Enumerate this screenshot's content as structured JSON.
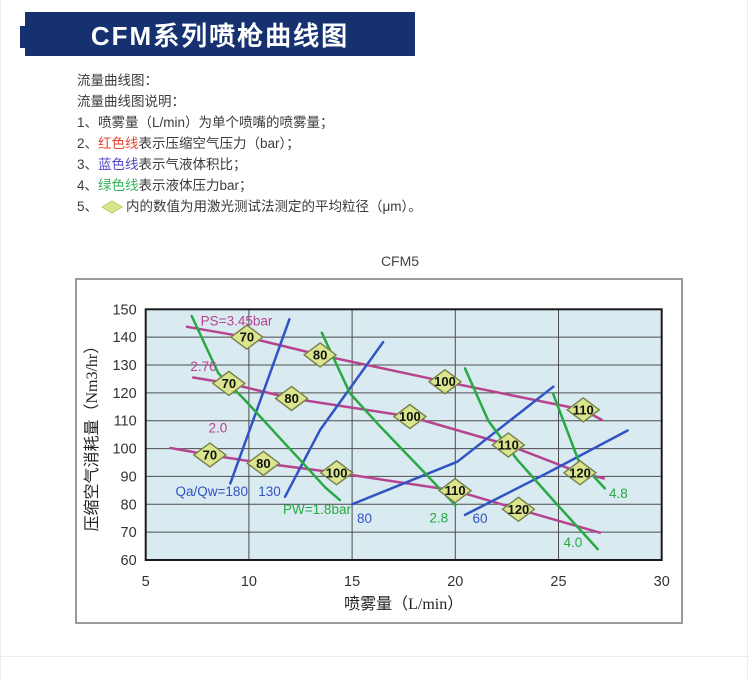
{
  "header": {
    "title": "CFM系列喷枪曲线图"
  },
  "legend": {
    "lines": [
      [
        {
          "text": "流量曲线图："
        }
      ],
      [
        {
          "text": "流量曲线图说明："
        }
      ],
      [
        {
          "text": "1、喷雾量（L/min）为单个喷嘴的喷雾量；"
        }
      ],
      [
        {
          "text": "2、"
        },
        {
          "text": "红色线",
          "color": "#e8462f"
        },
        {
          "text": "表示压缩空气压力（bar）；"
        }
      ],
      [
        {
          "text": "3、"
        },
        {
          "text": "蓝色线",
          "color": "#4f49c5"
        },
        {
          "text": "表示气液体积比；"
        }
      ],
      [
        {
          "text": "4、"
        },
        {
          "text": "绿色线",
          "color": "#36b45c"
        },
        {
          "text": "表示液体压力bar；"
        }
      ],
      [
        {
          "text": "5、"
        },
        {
          "icon": "diamond"
        },
        {
          "text": "内的数值为用激光测试法测定的平均粒径（μm）。"
        }
      ]
    ],
    "diamond_fill": "#dbe48d",
    "diamond_stroke": "#b8cc66"
  },
  "chart_data": {
    "type": "line",
    "title": "CFM5",
    "xlabel": "喷雾量（L/min）",
    "ylabel": "压缩空气消耗量（Nm3/hr）",
    "xlim": [
      5,
      30
    ],
    "ylim": [
      60,
      150
    ],
    "xticks": [
      5,
      10,
      15,
      20,
      25,
      30
    ],
    "yticks": [
      60,
      70,
      80,
      90,
      100,
      110,
      120,
      130,
      140,
      150
    ],
    "grid": "on",
    "plot_bg": "#d9eaf1",
    "grid_color": "#4d4d4d",
    "border_color": "#1a1a1a",
    "marker_fill": "#dbe58e",
    "marker_stroke": "#75804a",
    "series": [
      {
        "name": "PS=3.45bar",
        "kind": "air-pressure",
        "color": "#b6448f",
        "label": {
          "text": "PS=3.45bar",
          "x": 9.4,
          "y": 146.0
        },
        "points": [
          [
            7.0,
            143.7
          ],
          [
            9.9,
            140.0
          ],
          [
            13.45,
            133.6
          ],
          [
            19.5,
            124.0
          ],
          [
            26.2,
            113.9
          ],
          [
            27.1,
            110.3
          ]
        ],
        "markers": [
          {
            "x": 9.9,
            "y": 140.0,
            "label": "70"
          },
          {
            "x": 13.45,
            "y": 133.6,
            "label": "80"
          },
          {
            "x": 19.5,
            "y": 124.0,
            "label": "100"
          },
          {
            "x": 26.2,
            "y": 113.9,
            "label": "110"
          }
        ]
      },
      {
        "name": "PS=2.76bar",
        "kind": "air-pressure",
        "color": "#b6448f",
        "label": {
          "text": "2.76",
          "x": 7.8,
          "y": 129.7
        },
        "points": [
          [
            7.3,
            125.5
          ],
          [
            9.03,
            123.4
          ],
          [
            12.07,
            118.0
          ],
          [
            17.8,
            111.5
          ],
          [
            22.57,
            101.3
          ],
          [
            26.04,
            91.3
          ],
          [
            27.2,
            89.3
          ]
        ],
        "markers": [
          {
            "x": 9.03,
            "y": 123.4,
            "label": "70"
          },
          {
            "x": 12.07,
            "y": 118.0,
            "label": "80"
          },
          {
            "x": 17.8,
            "y": 111.5,
            "label": "100"
          },
          {
            "x": 22.57,
            "y": 101.3,
            "label": "110"
          },
          {
            "x": 26.04,
            "y": 91.3,
            "label": "120"
          }
        ]
      },
      {
        "name": "PS=2.0bar",
        "kind": "air-pressure",
        "color": "#b6448f",
        "label": {
          "text": "2.0",
          "x": 8.5,
          "y": 107.6
        },
        "points": [
          [
            6.2,
            100.2
          ],
          [
            8.11,
            97.7
          ],
          [
            10.7,
            94.7
          ],
          [
            14.25,
            91.3
          ],
          [
            19.99,
            84.9
          ],
          [
            23.06,
            78.2
          ],
          [
            27.0,
            69.8
          ]
        ],
        "markers": [
          {
            "x": 8.11,
            "y": 97.7,
            "label": "70"
          },
          {
            "x": 10.7,
            "y": 94.7,
            "label": "80"
          },
          {
            "x": 14.25,
            "y": 91.3,
            "label": "100"
          },
          {
            "x": 19.99,
            "y": 84.9,
            "label": "110"
          },
          {
            "x": 23.06,
            "y": 78.2,
            "label": "120"
          }
        ]
      },
      {
        "name": "Qa/Qw=180",
        "kind": "air-liquid-ratio",
        "color": "#3154c4",
        "label": {
          "text": "Qa/Qw=180",
          "x": 8.2,
          "y": 84.8
        },
        "points": [
          [
            9.1,
            87.5
          ],
          [
            10.2,
            110.0
          ],
          [
            11.96,
            146.4
          ]
        ],
        "markers": []
      },
      {
        "name": "Qa/Qw=130",
        "kind": "air-liquid-ratio",
        "color": "#3154c4",
        "label": {
          "text": "130",
          "x": 11.0,
          "y": 84.8
        },
        "points": [
          [
            11.75,
            82.7
          ],
          [
            13.45,
            106.7
          ],
          [
            16.5,
            138.2
          ]
        ],
        "markers": []
      },
      {
        "name": "Qa/Qw=80",
        "kind": "air-liquid-ratio",
        "color": "#3154c4",
        "label": {
          "text": "80",
          "x": 15.6,
          "y": 75.0
        },
        "points": [
          [
            15.0,
            80.0
          ],
          [
            20.1,
            95.3
          ],
          [
            24.75,
            122.2
          ]
        ],
        "markers": []
      },
      {
        "name": "Qa/Qw=60",
        "kind": "air-liquid-ratio",
        "color": "#3154c4",
        "label": {
          "text": "60",
          "x": 21.2,
          "y": 75.0
        },
        "points": [
          [
            20.47,
            76.2
          ],
          [
            24.4,
            91.0
          ],
          [
            28.35,
            106.5
          ]
        ],
        "markers": []
      },
      {
        "name": "PW=1.8bar",
        "kind": "liquid-pressure",
        "color": "#29a944",
        "label": {
          "text": "PW=1.8bar",
          "x": 13.3,
          "y": 78.3
        },
        "points": [
          [
            7.23,
            147.6
          ],
          [
            8.52,
            127.0
          ],
          [
            9.81,
            117.4
          ],
          [
            11.51,
            103.7
          ],
          [
            12.56,
            95.3
          ],
          [
            13.69,
            86.1
          ],
          [
            14.41,
            81.5
          ]
        ],
        "markers": []
      },
      {
        "name": "PW=2.8bar",
        "kind": "liquid-pressure",
        "color": "#29a944",
        "label": {
          "text": "2.8",
          "x": 19.2,
          "y": 75.2
        },
        "points": [
          [
            13.53,
            141.6
          ],
          [
            14.9,
            119.8
          ],
          [
            16.35,
            108.0
          ],
          [
            18.3,
            93.0
          ],
          [
            20.0,
            79.7
          ]
        ],
        "markers": []
      },
      {
        "name": "PW=4.0bar",
        "kind": "liquid-pressure",
        "color": "#29a944",
        "label": {
          "text": "4.0",
          "x": 25.7,
          "y": 66.4
        },
        "points": [
          [
            20.47,
            128.8
          ],
          [
            21.6,
            110.0
          ],
          [
            23.0,
            96.0
          ],
          [
            24.8,
            81.0
          ],
          [
            26.9,
            63.9
          ]
        ],
        "markers": []
      },
      {
        "name": "PW=4.8bar",
        "kind": "liquid-pressure",
        "color": "#29a944",
        "label": {
          "text": "4.8",
          "x": 27.9,
          "y": 84.0
        },
        "points": [
          [
            24.75,
            119.5
          ],
          [
            25.96,
            95.9
          ],
          [
            27.25,
            85.7
          ]
        ],
        "markers": []
      }
    ]
  }
}
